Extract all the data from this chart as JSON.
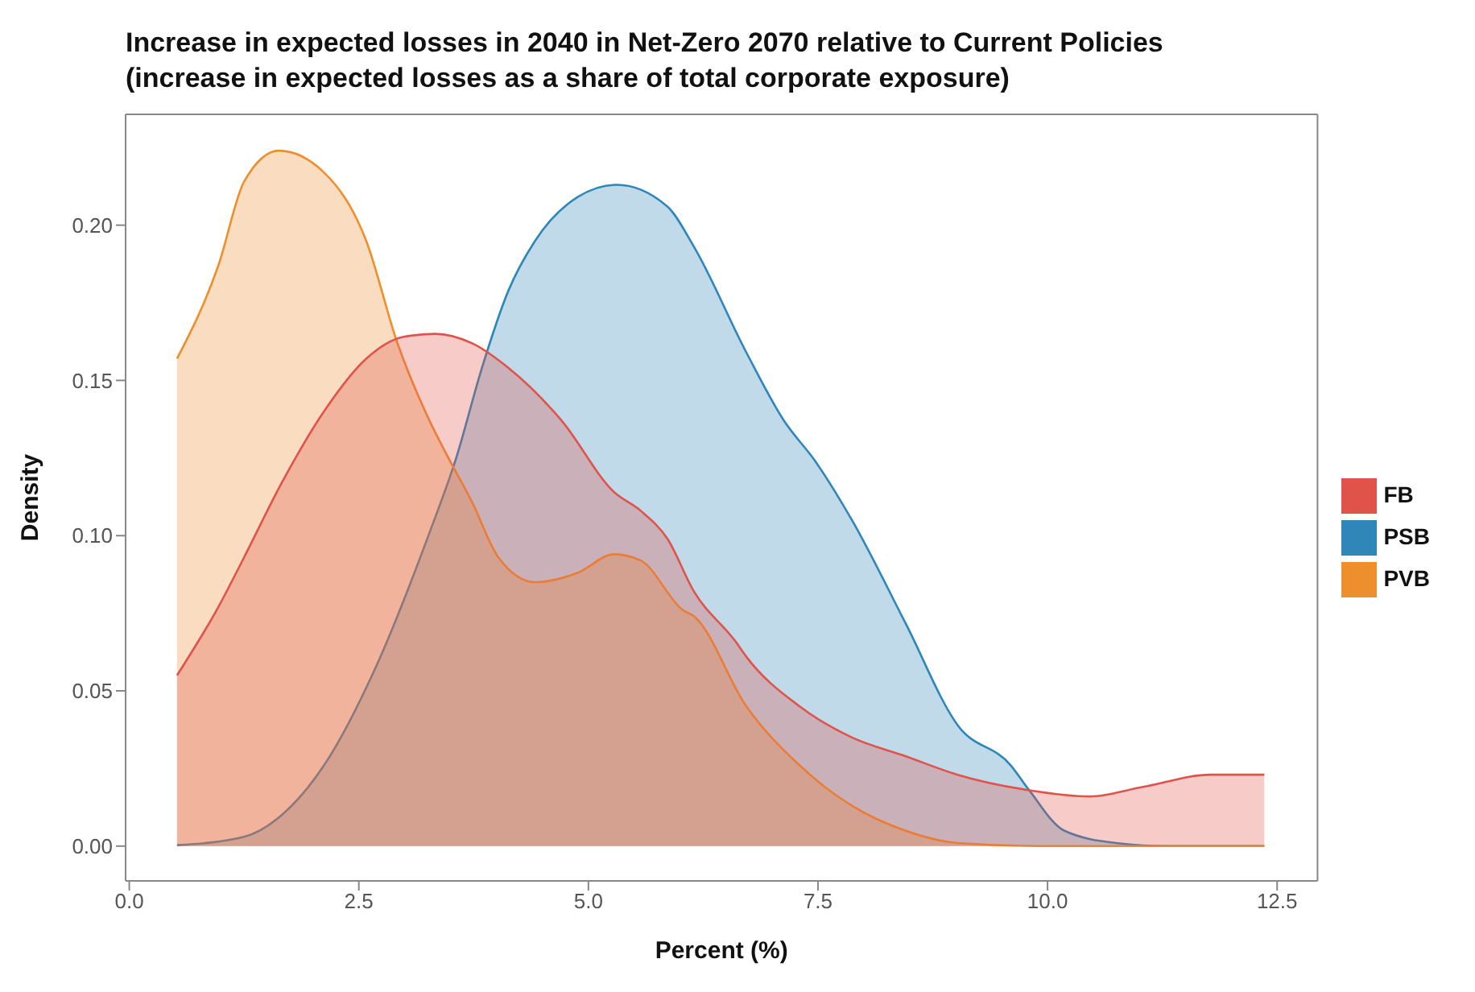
{
  "chart_data": {
    "type": "area",
    "title": "Increase in expected losses in 2040 in Net-Zero 2070 relative to Current Policies",
    "subtitle": "(increase in expected losses as a share of total corporate exposure)",
    "xlabel": "Percent (%)",
    "ylabel": "Density",
    "xlim": [
      -0.04,
      12.94
    ],
    "ylim": [
      -0.0112,
      0.2357
    ],
    "xticks": [
      {
        "value": 0,
        "label": "0.0"
      },
      {
        "value": 2.5,
        "label": "2.5"
      },
      {
        "value": 5,
        "label": "5.0"
      },
      {
        "value": 7.5,
        "label": "7.5"
      },
      {
        "value": 10,
        "label": "10.0"
      },
      {
        "value": 12.5,
        "label": "12.5"
      }
    ],
    "yticks": [
      {
        "value": 0,
        "label": "0.00"
      },
      {
        "value": 0.05,
        "label": "0.05"
      },
      {
        "value": 0.1,
        "label": "0.10"
      },
      {
        "value": 0.15,
        "label": "0.15"
      },
      {
        "value": 0.2,
        "label": "0.20"
      }
    ],
    "grid": false,
    "legend": "right",
    "series": [
      {
        "name": "PSB",
        "color": "#2f86b8",
        "x": [
          0.52,
          1.25,
          1.66,
          2.12,
          2.69,
          3.27,
          3.56,
          3.84,
          4.13,
          4.42,
          4.88,
          5.31,
          5.86,
          6.15,
          6.72,
          7.13,
          7.47,
          7.87,
          8.45,
          9.02,
          9.6,
          9.8,
          10.18,
          10.75,
          11.33,
          12.36
        ],
        "values": [
          0.0003,
          0.003,
          0.01,
          0.026,
          0.058,
          0.101,
          0.125,
          0.154,
          0.179,
          0.195,
          0.209,
          0.213,
          0.206,
          0.193,
          0.159,
          0.137,
          0.124,
          0.105,
          0.072,
          0.039,
          0.026,
          0.018,
          0.005,
          0.001,
          0,
          0
        ]
      },
      {
        "name": "PVB",
        "color": "#ee8f2e",
        "x": [
          0.52,
          0.97,
          1.25,
          1.63,
          2.12,
          2.58,
          2.92,
          3.27,
          3.44,
          3.73,
          4.02,
          4.42,
          4.88,
          5.28,
          5.57,
          6.03,
          6.15,
          6.72,
          7.3,
          7.87,
          8.45,
          9.02,
          10,
          12.36
        ],
        "values": [
          0.157,
          0.187,
          0.214,
          0.224,
          0.217,
          0.195,
          0.162,
          0.137,
          0.127,
          0.111,
          0.093,
          0.085,
          0.088,
          0.094,
          0.092,
          0.076,
          0.074,
          0.045,
          0.026,
          0.013,
          0.005,
          0.001,
          0,
          0
        ]
      },
      {
        "name": "FB",
        "color": "#e0534a",
        "x": [
          0.52,
          0.97,
          1.25,
          1.66,
          2.12,
          2.58,
          2.98,
          3.33,
          3.73,
          4.13,
          4.71,
          5.28,
          5.57,
          5.86,
          6.15,
          6.6,
          6.72,
          7.3,
          7.87,
          8.45,
          9.02,
          9.8,
          10.46,
          11.03,
          11.78,
          12.36
        ],
        "values": [
          0.055,
          0.077,
          0.093,
          0.117,
          0.14,
          0.157,
          0.164,
          0.165,
          0.162,
          0.154,
          0.137,
          0.114,
          0.108,
          0.099,
          0.082,
          0.066,
          0.061,
          0.045,
          0.035,
          0.029,
          0.023,
          0.018,
          0.016,
          0.019,
          0.023,
          0.023
        ]
      }
    ]
  }
}
